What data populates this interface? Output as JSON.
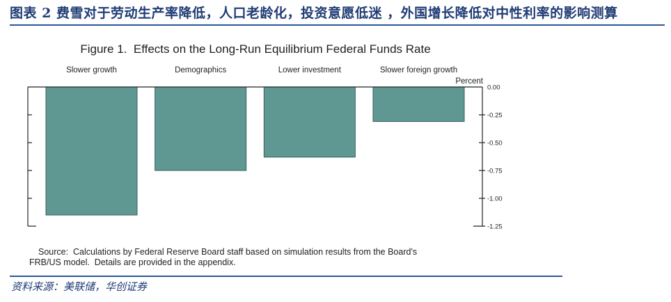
{
  "header": {
    "title": "图表 2 费雪对于劳动生产率降低，人口老龄化，投资意愿低迷 ，外国增长降低对中性利率的影响测算"
  },
  "chart_data": {
    "type": "bar",
    "title": "Figure 1.  Effects on the Long-Run Equilibrium Federal Funds Rate",
    "categories": [
      "Slower growth",
      "Demographics",
      "Lower investment",
      "Slower foreign growth"
    ],
    "values": [
      -1.15,
      -0.75,
      -0.63,
      -0.31
    ],
    "ylabel": "Percent",
    "ylim": [
      -1.25,
      0
    ],
    "yticks": [
      "0.00",
      "-0.25",
      "-0.50",
      "-0.75",
      "-1.00",
      "-1.25"
    ],
    "yaxis_position": "right",
    "grid": false,
    "legend": "none",
    "bar_color": "#5f9793"
  },
  "source_note": {
    "line1": "Source:  Calculations by Federal Reserve Board staff based on simulation results from the Board's",
    "line2": "FRB/US model.  Details are provided in the appendix."
  },
  "footer": {
    "source": "资料来源：美联储，华创证券"
  },
  "colors": {
    "header_text": "#1f3b74",
    "rule": "#2b579a"
  }
}
